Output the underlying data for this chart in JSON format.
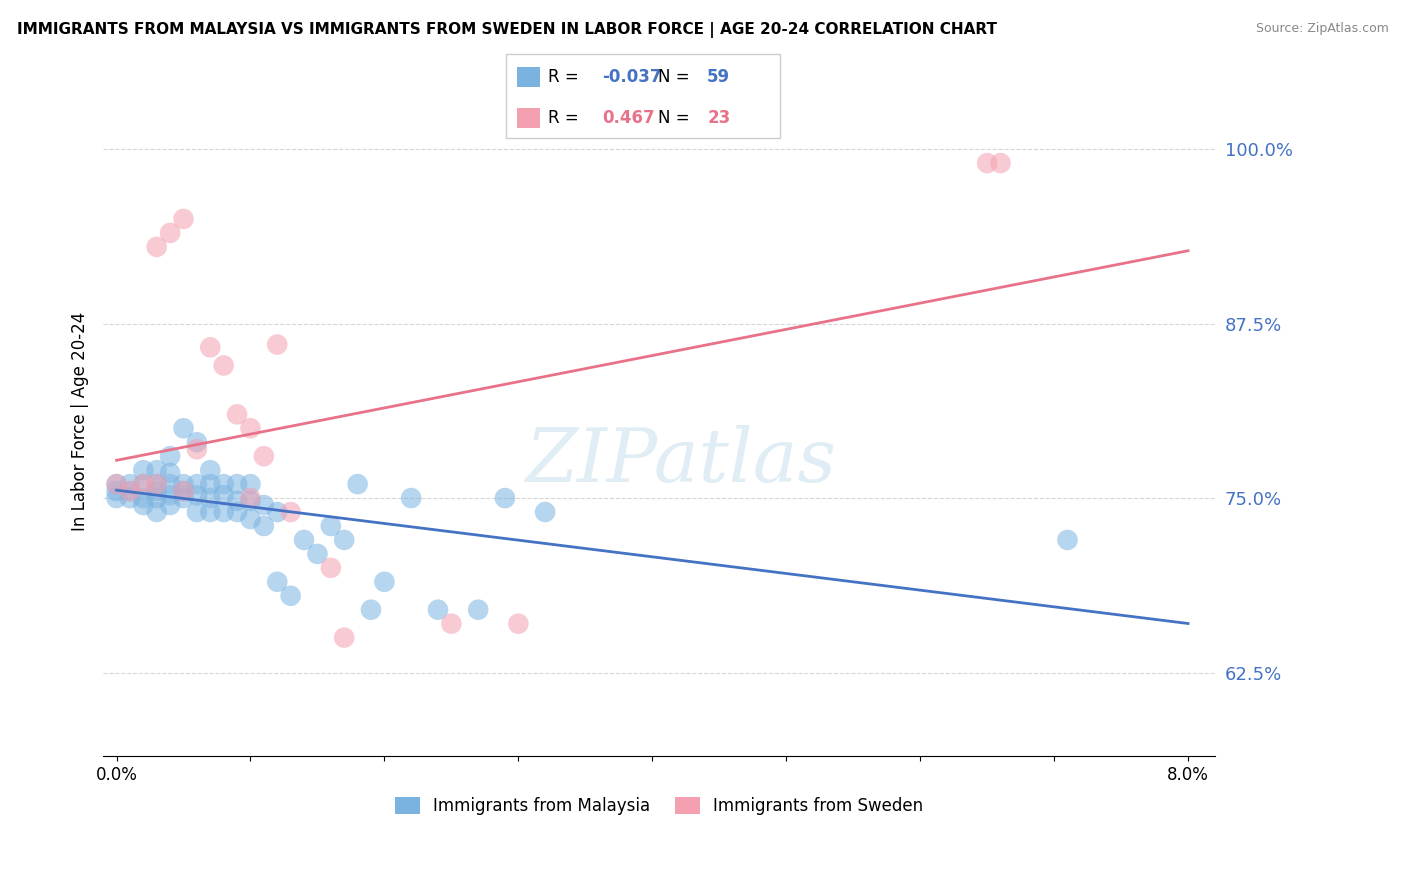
{
  "title": "IMMIGRANTS FROM MALAYSIA VS IMMIGRANTS FROM SWEDEN IN LABOR FORCE | AGE 20-24 CORRELATION CHART",
  "source": "Source: ZipAtlas.com",
  "ylabel_label": "In Labor Force | Age 20-24",
  "watermark": "ZIPatlas",
  "xlim": [
    -0.001,
    0.082
  ],
  "ylim": [
    0.565,
    1.045
  ],
  "xticks": [
    0.0,
    0.01,
    0.02,
    0.03,
    0.04,
    0.05,
    0.06,
    0.07,
    0.08
  ],
  "xtick_labels": [
    "0.0%",
    "",
    "",
    "",
    "",
    "",
    "",
    "",
    "8.0%"
  ],
  "yticks": [
    0.625,
    0.75,
    0.875,
    1.0
  ],
  "ytick_labels": [
    "62.5%",
    "75.0%",
    "87.5%",
    "100.0%"
  ],
  "malaysia_R": -0.037,
  "malaysia_N": 59,
  "sweden_R": 0.467,
  "sweden_N": 23,
  "malaysia_color": "#7ab3e0",
  "sweden_color": "#f4a0b0",
  "malaysia_line_color": "#4472c4",
  "sweden_line_color": "#e8728a",
  "legend_label_malaysia": "Immigrants from Malaysia",
  "legend_label_sweden": "Immigrants from Sweden",
  "malaysia_x": [
    0.0,
    0.0,
    0.001,
    0.001,
    0.001,
    0.002,
    0.002,
    0.002,
    0.002,
    0.003,
    0.003,
    0.003,
    0.003,
    0.003,
    0.004,
    0.004,
    0.004,
    0.004,
    0.004,
    0.005,
    0.005,
    0.005,
    0.005,
    0.006,
    0.006,
    0.006,
    0.006,
    0.007,
    0.007,
    0.007,
    0.007,
    0.008,
    0.008,
    0.008,
    0.009,
    0.009,
    0.009,
    0.01,
    0.01,
    0.01,
    0.011,
    0.011,
    0.012,
    0.012,
    0.013,
    0.014,
    0.015,
    0.016,
    0.017,
    0.018,
    0.019,
    0.02,
    0.022,
    0.024,
    0.027,
    0.029,
    0.032,
    0.071,
    0.0
  ],
  "malaysia_y": [
    0.755,
    0.76,
    0.75,
    0.755,
    0.76,
    0.745,
    0.75,
    0.76,
    0.77,
    0.74,
    0.75,
    0.755,
    0.76,
    0.77,
    0.745,
    0.752,
    0.76,
    0.768,
    0.78,
    0.75,
    0.755,
    0.76,
    0.8,
    0.74,
    0.752,
    0.76,
    0.79,
    0.74,
    0.75,
    0.76,
    0.77,
    0.74,
    0.752,
    0.76,
    0.74,
    0.748,
    0.76,
    0.735,
    0.748,
    0.76,
    0.73,
    0.745,
    0.74,
    0.69,
    0.68,
    0.72,
    0.71,
    0.73,
    0.72,
    0.76,
    0.67,
    0.69,
    0.75,
    0.67,
    0.67,
    0.75,
    0.74,
    0.72,
    0.75
  ],
  "sweden_x": [
    0.0,
    0.001,
    0.002,
    0.003,
    0.003,
    0.004,
    0.005,
    0.005,
    0.006,
    0.007,
    0.008,
    0.009,
    0.01,
    0.01,
    0.011,
    0.012,
    0.013,
    0.016,
    0.017,
    0.025,
    0.03,
    0.065,
    0.066
  ],
  "sweden_y": [
    0.76,
    0.755,
    0.76,
    0.76,
    0.93,
    0.94,
    0.755,
    0.95,
    0.785,
    0.858,
    0.845,
    0.81,
    0.75,
    0.8,
    0.78,
    0.86,
    0.74,
    0.7,
    0.65,
    0.66,
    0.66,
    0.99,
    0.99
  ]
}
